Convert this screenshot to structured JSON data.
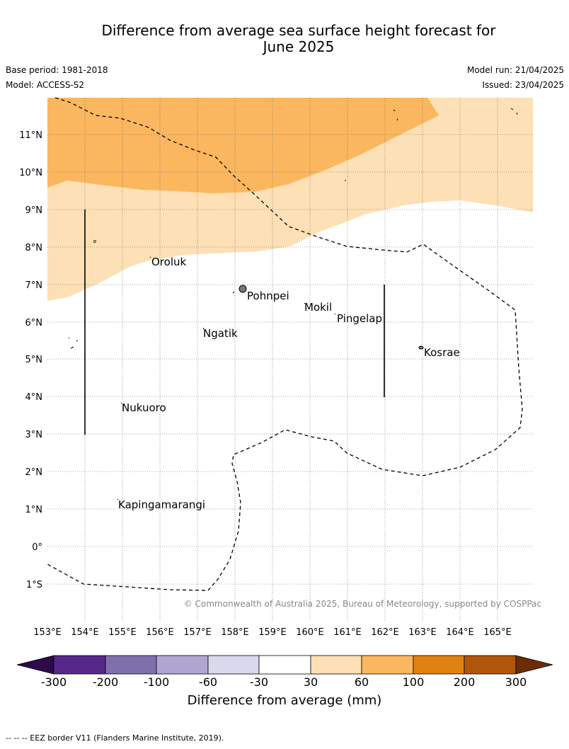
{
  "header": {
    "title_line1": "Difference from average sea surface height forecast for",
    "title_line2": "June 2025",
    "base_period": "Base period: 1981-2018",
    "model": "Model: ACCESS-S2",
    "model_run": "Model run: 21/04/2025",
    "issued": "Issued: 23/04/2025"
  },
  "map": {
    "lon_labels": [
      "153°E",
      "154°E",
      "155°E",
      "156°E",
      "157°E",
      "158°E",
      "159°E",
      "160°E",
      "161°E",
      "162°E",
      "163°E",
      "164°E",
      "165°E"
    ],
    "lat_labels": [
      "11°N",
      "10°N",
      "9°N",
      "8°N",
      "7°N",
      "6°N",
      "5°N",
      "4°N",
      "3°N",
      "2°N",
      "1°N",
      "0°",
      "1°S"
    ],
    "places": [
      "Oroluk",
      "Pohnpei",
      "Mokil",
      "Pingelap",
      "Ngatik",
      "Kosrae",
      "Nukuoro",
      "Kapingamarangi"
    ],
    "copyright": "© Commonwealth of Australia 2025, Bureau of Meteorology, supported by COSPPac",
    "colors": {
      "band_60_100": "#fbb75f",
      "band_30_60": "#fde0b5"
    }
  },
  "colorbar": {
    "ticks": [
      "-300",
      "-200",
      "-100",
      "-60",
      "-30",
      "30",
      "60",
      "100",
      "200",
      "300"
    ],
    "colors": [
      "#2e0a4b",
      "#56288a",
      "#7f70ad",
      "#afa7d1",
      "#d9d9ed",
      "#ffffff",
      "#fde0b5",
      "#fbb75f",
      "#e0820f",
      "#b1560b",
      "#6b2d05"
    ],
    "label": "Difference from average (mm)"
  },
  "footer": {
    "eez_note": "--  --  -- EEZ border V11 (Flanders Marine Institute, 2019)."
  }
}
